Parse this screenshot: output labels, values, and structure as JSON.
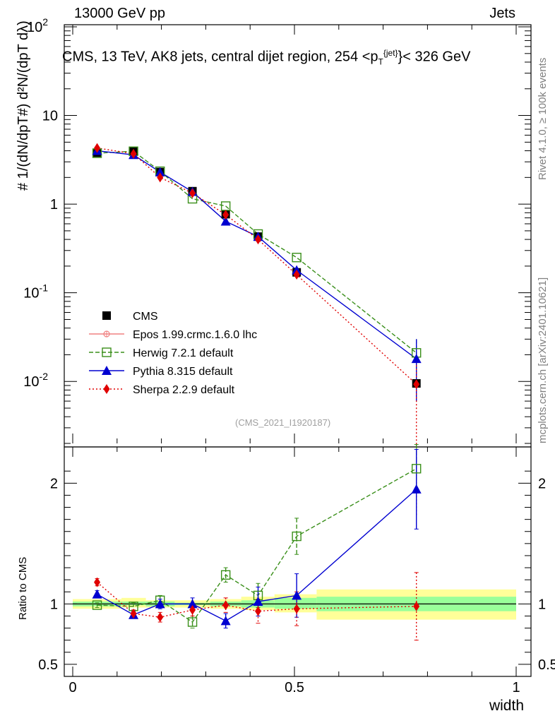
{
  "header": {
    "left": "13000 GeV pp",
    "right": "Jets",
    "title_pre": "CMS, 13 TeV, AK8 jets, central dijet region, 254 <p",
    "title_sub": "T",
    "title_sup": "{jet}",
    "title_post": "}< 326 GeV"
  },
  "axes": {
    "main_ylabel": "# 1/(dN/dpT#) d²N/(dpT dλ)",
    "ratio_ylabel": "Ratio to CMS",
    "xlabel": "width"
  },
  "side_text": {
    "rivet": "Rivet 4.1.0, ≥ 100k events",
    "mcplots": "mcplots.cern.ch [arXiv:2401.10621]"
  },
  "watermark": "(CMS_2021_I1920187)",
  "colors": {
    "cms": "#000000",
    "epos": "#f08080",
    "herwig": "#3a8f1a",
    "pythia": "#0000d0",
    "sherpa": "#e00000",
    "band_inner": "#99ff99",
    "band_outer": "#ffff99"
  },
  "chart_data": [
    {
      "type": "scatter",
      "panel": "main",
      "yscale": "log",
      "xlim": [
        0,
        1
      ],
      "ylim": [
        0.002,
        100
      ],
      "xticks": [
        0,
        0.5,
        1
      ],
      "ytick_labels": [
        "10^{-2}",
        "10^{-1}",
        "1",
        "10",
        "10^{2}"
      ],
      "bin_edges": [
        0,
        0.11,
        0.165,
        0.23,
        0.31,
        0.38,
        0.455,
        0.55,
        1.0
      ],
      "x": [
        0.055,
        0.137,
        0.197,
        0.27,
        0.345,
        0.418,
        0.505,
        0.775
      ],
      "series": [
        {
          "name": "CMS",
          "label": "CMS",
          "values": [
            3.8,
            4.0,
            2.3,
            1.4,
            0.77,
            0.43,
            0.17,
            0.0095
          ]
        },
        {
          "name": "Epos",
          "label": "Epos 1.99.crmc.1.6.0 lhc",
          "values": []
        },
        {
          "name": "Herwig",
          "label": "Herwig 7.2.1 default",
          "values": [
            3.75,
            3.95,
            2.35,
            1.15,
            0.95,
            0.46,
            0.25,
            0.021
          ]
        },
        {
          "name": "Pythia",
          "label": "Pythia 8.315 default",
          "values": [
            4.0,
            3.6,
            2.3,
            1.38,
            0.64,
            0.43,
            0.18,
            0.018
          ]
        },
        {
          "name": "Sherpa",
          "label": "Sherpa 2.2.9 default",
          "values": [
            4.3,
            3.7,
            2.0,
            1.33,
            0.76,
            0.4,
            0.16,
            0.0093
          ]
        }
      ],
      "errors": {
        "Herwig": [
          0.05,
          0.05,
          0.06,
          0.04,
          0.04,
          0.02,
          0.02,
          0.003
        ],
        "Pythia": [
          0.05,
          0.05,
          0.06,
          0.04,
          0.04,
          0.02,
          0.03,
          0.004
        ],
        "Sherpa": [
          0.05,
          0.05,
          0.06,
          0.05,
          0.04,
          0.02,
          0.03,
          0.003
        ]
      }
    },
    {
      "type": "line",
      "panel": "ratio",
      "xlim": [
        0,
        1
      ],
      "ylim": [
        0.4,
        2.3
      ],
      "yticks": [
        0.5,
        1,
        2
      ],
      "ytick_labels": [
        "0.5",
        "1",
        "2"
      ],
      "xticks": [
        0,
        0.5,
        1
      ],
      "xtick_labels": [
        "0",
        "0.5",
        "1"
      ],
      "bin_edges": [
        0,
        0.11,
        0.165,
        0.23,
        0.31,
        0.38,
        0.455,
        0.55,
        1.0
      ],
      "band_inner": [
        [
          0.98,
          1.02
        ],
        [
          0.99,
          1.02
        ],
        [
          0.98,
          1.02
        ],
        [
          0.99,
          1.01
        ],
        [
          0.98,
          1.02
        ],
        [
          0.97,
          1.03
        ],
        [
          0.96,
          1.05
        ],
        [
          0.94,
          1.06
        ]
      ],
      "band_outer": [
        [
          0.96,
          1.04
        ],
        [
          0.97,
          1.05
        ],
        [
          0.97,
          1.03
        ],
        [
          0.97,
          1.03
        ],
        [
          0.96,
          1.04
        ],
        [
          0.95,
          1.06
        ],
        [
          0.93,
          1.08
        ],
        [
          0.87,
          1.12
        ]
      ],
      "x": [
        0.055,
        0.137,
        0.197,
        0.27,
        0.345,
        0.418,
        0.505,
        0.775
      ],
      "series": [
        {
          "name": "Herwig",
          "values": [
            0.99,
            0.98,
            1.03,
            0.85,
            1.24,
            1.07,
            1.56,
            2.12
          ],
          "err": [
            0.02,
            0.03,
            0.04,
            0.05,
            0.06,
            0.1,
            0.15,
            0.2
          ]
        },
        {
          "name": "Pythia",
          "values": [
            1.08,
            0.91,
            1.0,
            1.0,
            0.86,
            1.02,
            1.07,
            1.95
          ],
          "err": [
            0.03,
            0.03,
            0.04,
            0.05,
            0.06,
            0.12,
            0.18,
            0.33
          ]
        },
        {
          "name": "Sherpa",
          "values": [
            1.18,
            0.92,
            0.89,
            0.95,
            0.99,
            0.94,
            0.96,
            0.98
          ],
          "err": [
            0.03,
            0.03,
            0.04,
            0.05,
            0.06,
            0.1,
            0.14,
            0.28
          ]
        }
      ]
    }
  ]
}
